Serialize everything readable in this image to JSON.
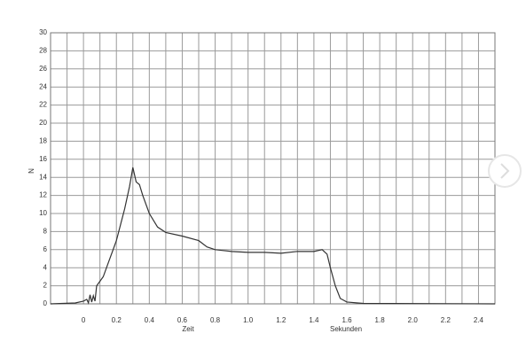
{
  "chart_data": {
    "type": "line",
    "y_label": "N",
    "x_label": "Zeit",
    "x_unit_label": "Sekunden",
    "color": "#333333",
    "x": [
      -0.2,
      -0.05,
      0,
      0.02,
      0.03,
      0.04,
      0.05,
      0.06,
      0.07,
      0.08,
      0.1,
      0.12,
      0.15,
      0.2,
      0.25,
      0.28,
      0.3,
      0.32,
      0.34,
      0.36,
      0.4,
      0.45,
      0.5,
      0.6,
      0.7,
      0.75,
      0.8,
      0.9,
      1.0,
      1.1,
      1.2,
      1.3,
      1.4,
      1.45,
      1.48,
      1.5,
      1.53,
      1.56,
      1.6,
      1.7,
      2.5
    ],
    "values": [
      0,
      0.1,
      0.3,
      0.5,
      0.1,
      1,
      0.2,
      0.9,
      0.3,
      2,
      2.5,
      3,
      4.5,
      7,
      10.5,
      13,
      15.1,
      13.5,
      13.2,
      12,
      10,
      8.5,
      7.9,
      7.5,
      7,
      6.3,
      6,
      5.8,
      5.7,
      5.7,
      5.6,
      5.8,
      5.8,
      6,
      5.5,
      4,
      2,
      0.6,
      0.2,
      0.05,
      0
    ],
    "xlim": [
      -0.2,
      2.5
    ],
    "ylim": [
      0,
      30
    ],
    "xticks": [
      0,
      {
        "value": 0.2,
        "label": "0.2"
      },
      {
        "value": 0.4,
        "label": "0.4"
      },
      {
        "value": 0.6,
        "label": "0.6"
      },
      {
        "value": 0.8,
        "label": "0.8"
      },
      {
        "value": 1.0,
        "label": "1.0"
      },
      {
        "value": 1.2,
        "label": "1.2"
      },
      {
        "value": 1.4,
        "label": "1.4"
      },
      {
        "value": 1.6,
        "label": "1.6"
      },
      {
        "value": 1.8,
        "label": "1.8"
      },
      {
        "value": 2.0,
        "label": "2.0"
      },
      {
        "value": 2.2,
        "label": "2.2"
      },
      {
        "value": 2.4,
        "label": "2.4"
      }
    ],
    "x_minor_grid": [
      -0.1,
      0.1,
      0.3,
      0.5,
      0.7,
      0.9,
      1.1,
      1.3,
      1.5,
      1.7,
      1.9,
      2.1,
      2.3
    ],
    "yticks": [
      0,
      2,
      4,
      6,
      8,
      10,
      12,
      14,
      16,
      18,
      20,
      22,
      24,
      26,
      28,
      30
    ],
    "grid": true
  }
}
